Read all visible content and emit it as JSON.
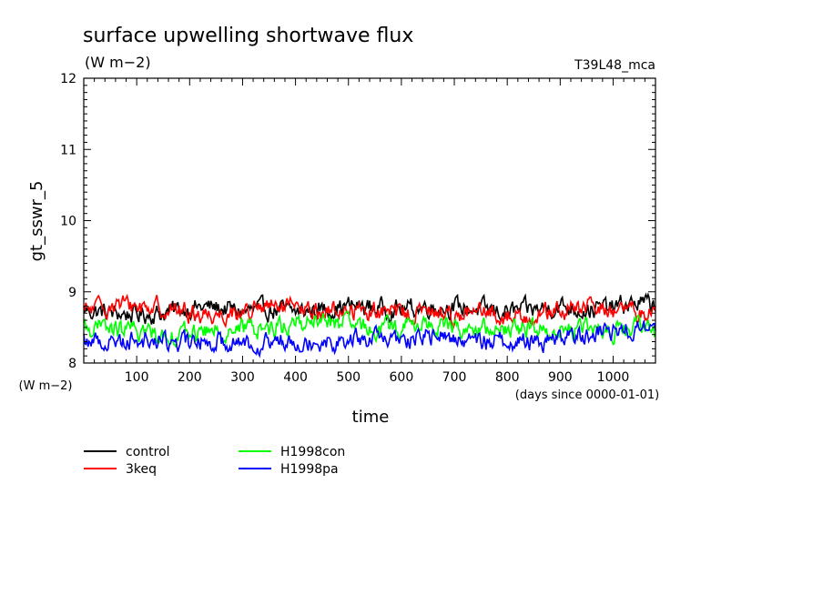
{
  "chart_data": {
    "type": "line",
    "title": "surface upwelling shortwave flux",
    "units": "(W m−2)",
    "run_label": "T39L48_mca",
    "ylabel": "gt_sswr_5",
    "ylabel_units": "(W m−2)",
    "xlabel": "time",
    "xlabel_note": "(days since 0000-01-01)",
    "xlim": [
      0,
      1080
    ],
    "ylim": [
      8,
      12
    ],
    "x_ticks": [
      100,
      200,
      300,
      400,
      500,
      600,
      700,
      800,
      900,
      1000
    ],
    "y_ticks": [
      8,
      9,
      10,
      11,
      12
    ],
    "grid": false,
    "legend_position": "bottom-left, below plot",
    "series": [
      {
        "name": "control",
        "color": "#000000",
        "x": [
          0,
          50,
          100,
          150,
          200,
          250,
          300,
          350,
          400,
          450,
          500,
          550,
          600,
          650,
          700,
          750,
          800,
          850,
          900,
          950,
          1000,
          1050,
          1080
        ],
        "values": [
          8.75,
          8.7,
          8.68,
          8.7,
          8.78,
          8.78,
          8.72,
          8.75,
          8.72,
          8.75,
          8.8,
          8.78,
          8.75,
          8.8,
          8.78,
          8.75,
          8.72,
          8.75,
          8.8,
          8.75,
          8.78,
          8.85,
          8.8
        ]
      },
      {
        "name": "3keq",
        "color": "#ff0000",
        "x": [
          0,
          50,
          100,
          150,
          200,
          250,
          300,
          350,
          400,
          450,
          500,
          550,
          600,
          650,
          700,
          750,
          800,
          850,
          900,
          950,
          1000,
          1050,
          1080
        ],
        "values": [
          8.72,
          8.82,
          8.8,
          8.78,
          8.7,
          8.68,
          8.72,
          8.78,
          8.75,
          8.72,
          8.75,
          8.72,
          8.7,
          8.72,
          8.68,
          8.7,
          8.65,
          8.68,
          8.72,
          8.78,
          8.75,
          8.7,
          8.72
        ]
      },
      {
        "name": "H1998con",
        "color": "#00ff00",
        "x": [
          0,
          50,
          100,
          150,
          200,
          250,
          300,
          350,
          400,
          450,
          500,
          550,
          600,
          650,
          700,
          750,
          800,
          850,
          900,
          950,
          1000,
          1050,
          1080
        ],
        "values": [
          8.5,
          8.48,
          8.45,
          8.4,
          8.42,
          8.45,
          8.48,
          8.5,
          8.55,
          8.6,
          8.52,
          8.48,
          8.5,
          8.55,
          8.5,
          8.45,
          8.48,
          8.5,
          8.45,
          8.48,
          8.45,
          8.5,
          8.4
        ]
      },
      {
        "name": "H1998pa",
        "color": "#0000ff",
        "x": [
          0,
          50,
          100,
          150,
          200,
          250,
          300,
          350,
          400,
          450,
          500,
          550,
          600,
          650,
          700,
          750,
          800,
          850,
          900,
          950,
          1000,
          1050,
          1080
        ],
        "values": [
          8.32,
          8.3,
          8.35,
          8.3,
          8.28,
          8.32,
          8.3,
          8.28,
          8.35,
          8.3,
          8.32,
          8.35,
          8.3,
          8.38,
          8.35,
          8.3,
          8.32,
          8.3,
          8.35,
          8.4,
          8.45,
          8.5,
          8.45
        ]
      }
    ]
  }
}
